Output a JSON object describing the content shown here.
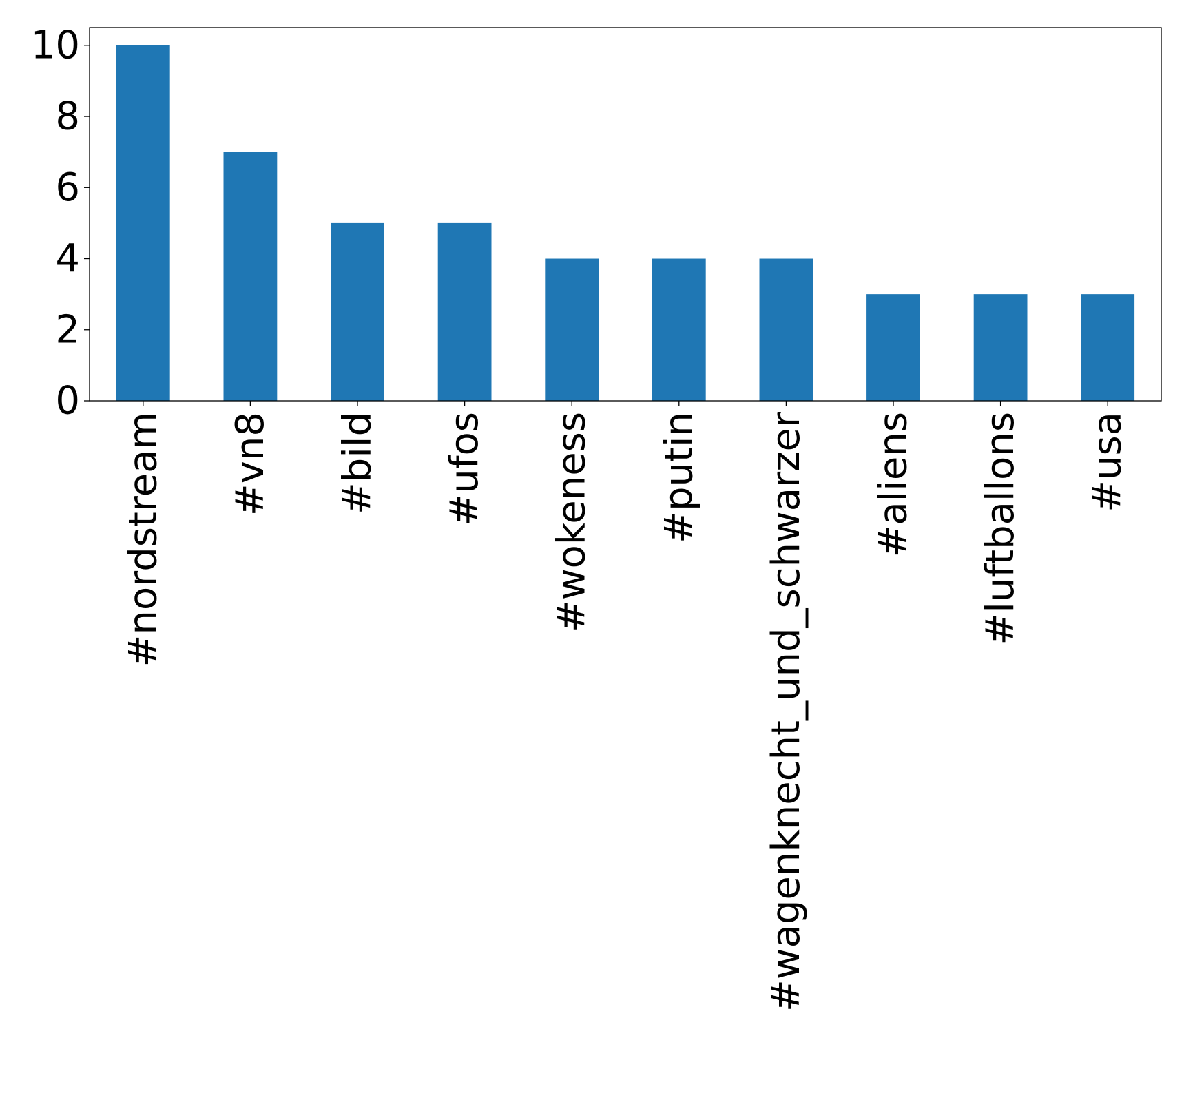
{
  "chart_data": {
    "type": "bar",
    "categories": [
      "#nordstream",
      "#vn8",
      "#bild",
      "#ufos",
      "#wokeness",
      "#putin",
      "#wagenknecht_und_schwarzer",
      "#aliens",
      "#luftballons",
      "#usa"
    ],
    "values": [
      10,
      7,
      5,
      5,
      4,
      4,
      4,
      3,
      3,
      3
    ],
    "title": "",
    "xlabel": "",
    "ylabel": "",
    "ylim": [
      0,
      10.5
    ],
    "yticks": [
      0,
      2,
      4,
      6,
      8,
      10
    ],
    "grid": false,
    "legend": "none",
    "bar_color": "#1f77b4",
    "x_tick_rotation": "vertical"
  }
}
